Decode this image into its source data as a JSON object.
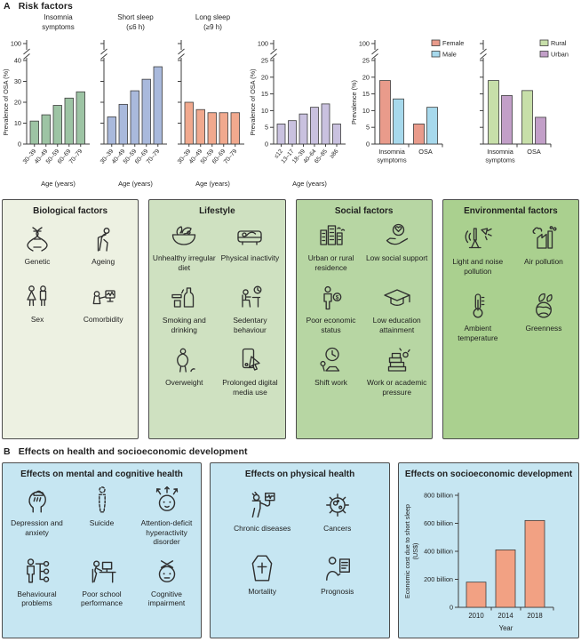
{
  "panel_a": {
    "label": "A",
    "title": "Risk factors"
  },
  "panel_b": {
    "label": "B",
    "title": "Effects on health and socioeconomic development"
  },
  "chart_data": [
    {
      "type": "bar",
      "variant": "age",
      "title_lines": [
        "Insomnia",
        "symptoms"
      ],
      "ylabel": "Prevalence of OSA (%)",
      "xlabel": "Age (years)",
      "categories": [
        "30–39",
        "40–49",
        "50–59",
        "60–69",
        "70–79"
      ],
      "values": [
        11,
        14,
        18.5,
        22,
        25
      ],
      "bar_color": "#9dc4a4",
      "ymax": 40,
      "yticks": [
        0,
        10,
        20,
        30,
        40
      ],
      "axis_break": true,
      "axis_break_top_label": "100",
      "show_ytick_labels": true
    },
    {
      "type": "bar",
      "variant": "age",
      "title_lines": [
        "Short sleep",
        "(≤6 h)"
      ],
      "ylabel": "",
      "xlabel": "Age (years)",
      "categories": [
        "30–39",
        "40–49",
        "50–59",
        "60–69",
        "70–79"
      ],
      "values": [
        13,
        19,
        25.5,
        31,
        37
      ],
      "bar_color": "#a9b9dc",
      "ymax": 40,
      "yticks": [
        0,
        10,
        20,
        30,
        40
      ],
      "axis_break": true,
      "axis_break_top_label": "100",
      "show_ytick_labels": false
    },
    {
      "type": "bar",
      "variant": "age",
      "title_lines": [
        "Long sleep",
        "(≥9 h)"
      ],
      "ylabel": "",
      "xlabel": "Age (years)",
      "categories": [
        "30–39",
        "40–49",
        "50–59",
        "60–69",
        "70–79"
      ],
      "values": [
        20,
        16.5,
        15,
        15,
        15
      ],
      "bar_color": "#f1a98e",
      "ymax": 40,
      "yticks": [
        0,
        10,
        20,
        30,
        40
      ],
      "axis_break": true,
      "axis_break_top_label": "100",
      "show_ytick_labels": false
    },
    {
      "type": "bar",
      "variant": "age",
      "title_lines": [],
      "ylabel": "Prevalence of OSA (%)",
      "xlabel": "Age (years)",
      "categories": [
        "≤12",
        "13–17",
        "18–39",
        "40–64",
        "65–85",
        "≥86"
      ],
      "values": [
        6,
        7,
        9,
        11,
        12,
        6
      ],
      "bar_color": "#c9c1df",
      "ymax": 25,
      "yticks": [
        0,
        5,
        10,
        15,
        20,
        25
      ],
      "axis_break": true,
      "axis_break_top_label": "100",
      "show_ytick_labels": true
    },
    {
      "type": "bar",
      "variant": "grouped",
      "title_lines": [],
      "ylabel": "Prevalence (%)",
      "xlabel": "",
      "categories": [
        "Insomnia symptoms",
        "OSA"
      ],
      "series": [
        {
          "name": "Female",
          "color": "#e99b8b",
          "values": [
            19,
            6
          ]
        },
        {
          "name": "Male",
          "color": "#a7d9ec",
          "values": [
            13.5,
            11
          ]
        }
      ],
      "ymax": 25,
      "yticks": [
        0,
        5,
        10,
        15,
        20,
        25
      ],
      "axis_break": true,
      "axis_break_top_label": "100",
      "show_ytick_labels": true,
      "legend": true
    },
    {
      "type": "bar",
      "variant": "grouped",
      "title_lines": [],
      "ylabel": "",
      "xlabel": "",
      "categories": [
        "Insomnia symptoms",
        "OSA"
      ],
      "series": [
        {
          "name": "Rural",
          "color": "#c7dfa9",
          "values": [
            19,
            16
          ]
        },
        {
          "name": "Urban",
          "color": "#c29fc8",
          "values": [
            14.5,
            8
          ]
        }
      ],
      "ymax": 25,
      "yticks": [
        0,
        5,
        10,
        15,
        20,
        25
      ],
      "axis_break": true,
      "axis_break_top_label": "100",
      "show_ytick_labels": false,
      "legend": true
    },
    {
      "type": "bar",
      "variant": "economic",
      "ylabel_lines": [
        "Economic cost due to short sleep",
        "(US$)"
      ],
      "xlabel": "Year",
      "categories": [
        "2010",
        "2014",
        "2018"
      ],
      "values": [
        180,
        410,
        620
      ],
      "bar_color": "#f2a183",
      "ymax": 800,
      "yticks": [
        0,
        200,
        400,
        600,
        800
      ],
      "ytick_labels": [
        "0",
        "200 billion",
        "400 billion",
        "600 billion",
        "800 billion"
      ],
      "show_ytick_labels": true
    }
  ],
  "risk_boxes": [
    {
      "title": "Biological factors",
      "bg": "#edf1e2",
      "items": [
        {
          "icon": "dna-icon",
          "label": "Genetic"
        },
        {
          "icon": "elderly-person-icon",
          "label": "Ageing"
        },
        {
          "icon": "male-female-icon",
          "label": "Sex"
        },
        {
          "icon": "patient-examination-icon",
          "label": "Comorbidity"
        }
      ]
    },
    {
      "title": "Lifestyle",
      "bg": "#cfe1c1",
      "items": [
        {
          "icon": "food-bowl-icon",
          "label": "Unhealthy irregular diet"
        },
        {
          "icon": "couch-icon",
          "label": "Physical inactivity"
        },
        {
          "icon": "cigarette-bottle-icon",
          "label": "Smoking and drinking"
        },
        {
          "icon": "desk-sitting-icon",
          "label": "Sedentary behaviour"
        },
        {
          "icon": "overweight-person-icon",
          "label": "Overweight"
        },
        {
          "icon": "smartphone-hand-icon",
          "label": "Prolonged digital media use"
        }
      ]
    },
    {
      "title": "Social factors",
      "bg": "#b7d6a3",
      "items": [
        {
          "icon": "city-buildings-icon",
          "label": "Urban or rural residence"
        },
        {
          "icon": "hand-globe-icon",
          "label": "Low social support"
        },
        {
          "icon": "person-dollar-icon",
          "label": "Poor economic status"
        },
        {
          "icon": "graduation-cap-icon",
          "label": "Low education attainment"
        },
        {
          "icon": "shift-clock-icon",
          "label": "Shift work"
        },
        {
          "icon": "book-stack-icon",
          "label": "Work or academic pressure"
        }
      ]
    },
    {
      "title": "Environmental factors",
      "bg": "#aad08f",
      "items": [
        {
          "icon": "light-noise-icon",
          "label": "Light and noise pollution"
        },
        {
          "icon": "factory-smoke-icon",
          "label": "Air pollution"
        },
        {
          "icon": "thermometer-icon",
          "label": "Ambient temperature"
        },
        {
          "icon": "leafy-globe-icon",
          "label": "Greenness"
        }
      ]
    }
  ],
  "effect_boxes": [
    {
      "title": "Effects on mental and cognitive health",
      "bg": "#c6e6f2",
      "items": [
        {
          "icon": "head-raincloud-icon",
          "label": "Depression and anxiety"
        },
        {
          "icon": "dashed-figure-icon",
          "label": "Suicide"
        },
        {
          "icon": "adhd-head-icon",
          "label": "Attention-deficit hyperactivity disorder"
        },
        {
          "icon": "branching-person-icon",
          "label": "Behavioural problems"
        },
        {
          "icon": "student-desk-icon",
          "label": "Poor school performance"
        },
        {
          "icon": "crossed-brain-icon",
          "label": "Cognitive impairment"
        }
      ]
    },
    {
      "title": "Effects on physical health",
      "bg": "#c6e6f2",
      "items": [
        {
          "icon": "patient-monitor-icon",
          "label": "Chronic diseases"
        },
        {
          "icon": "cancer-cell-icon",
          "label": "Cancers"
        },
        {
          "icon": "coffin-icon",
          "label": "Mortality"
        },
        {
          "icon": "prognosis-document-icon",
          "label": "Prognosis"
        }
      ]
    },
    {
      "title": "Effects on socioeconomic development",
      "bg": "#c6e6f2"
    }
  ]
}
